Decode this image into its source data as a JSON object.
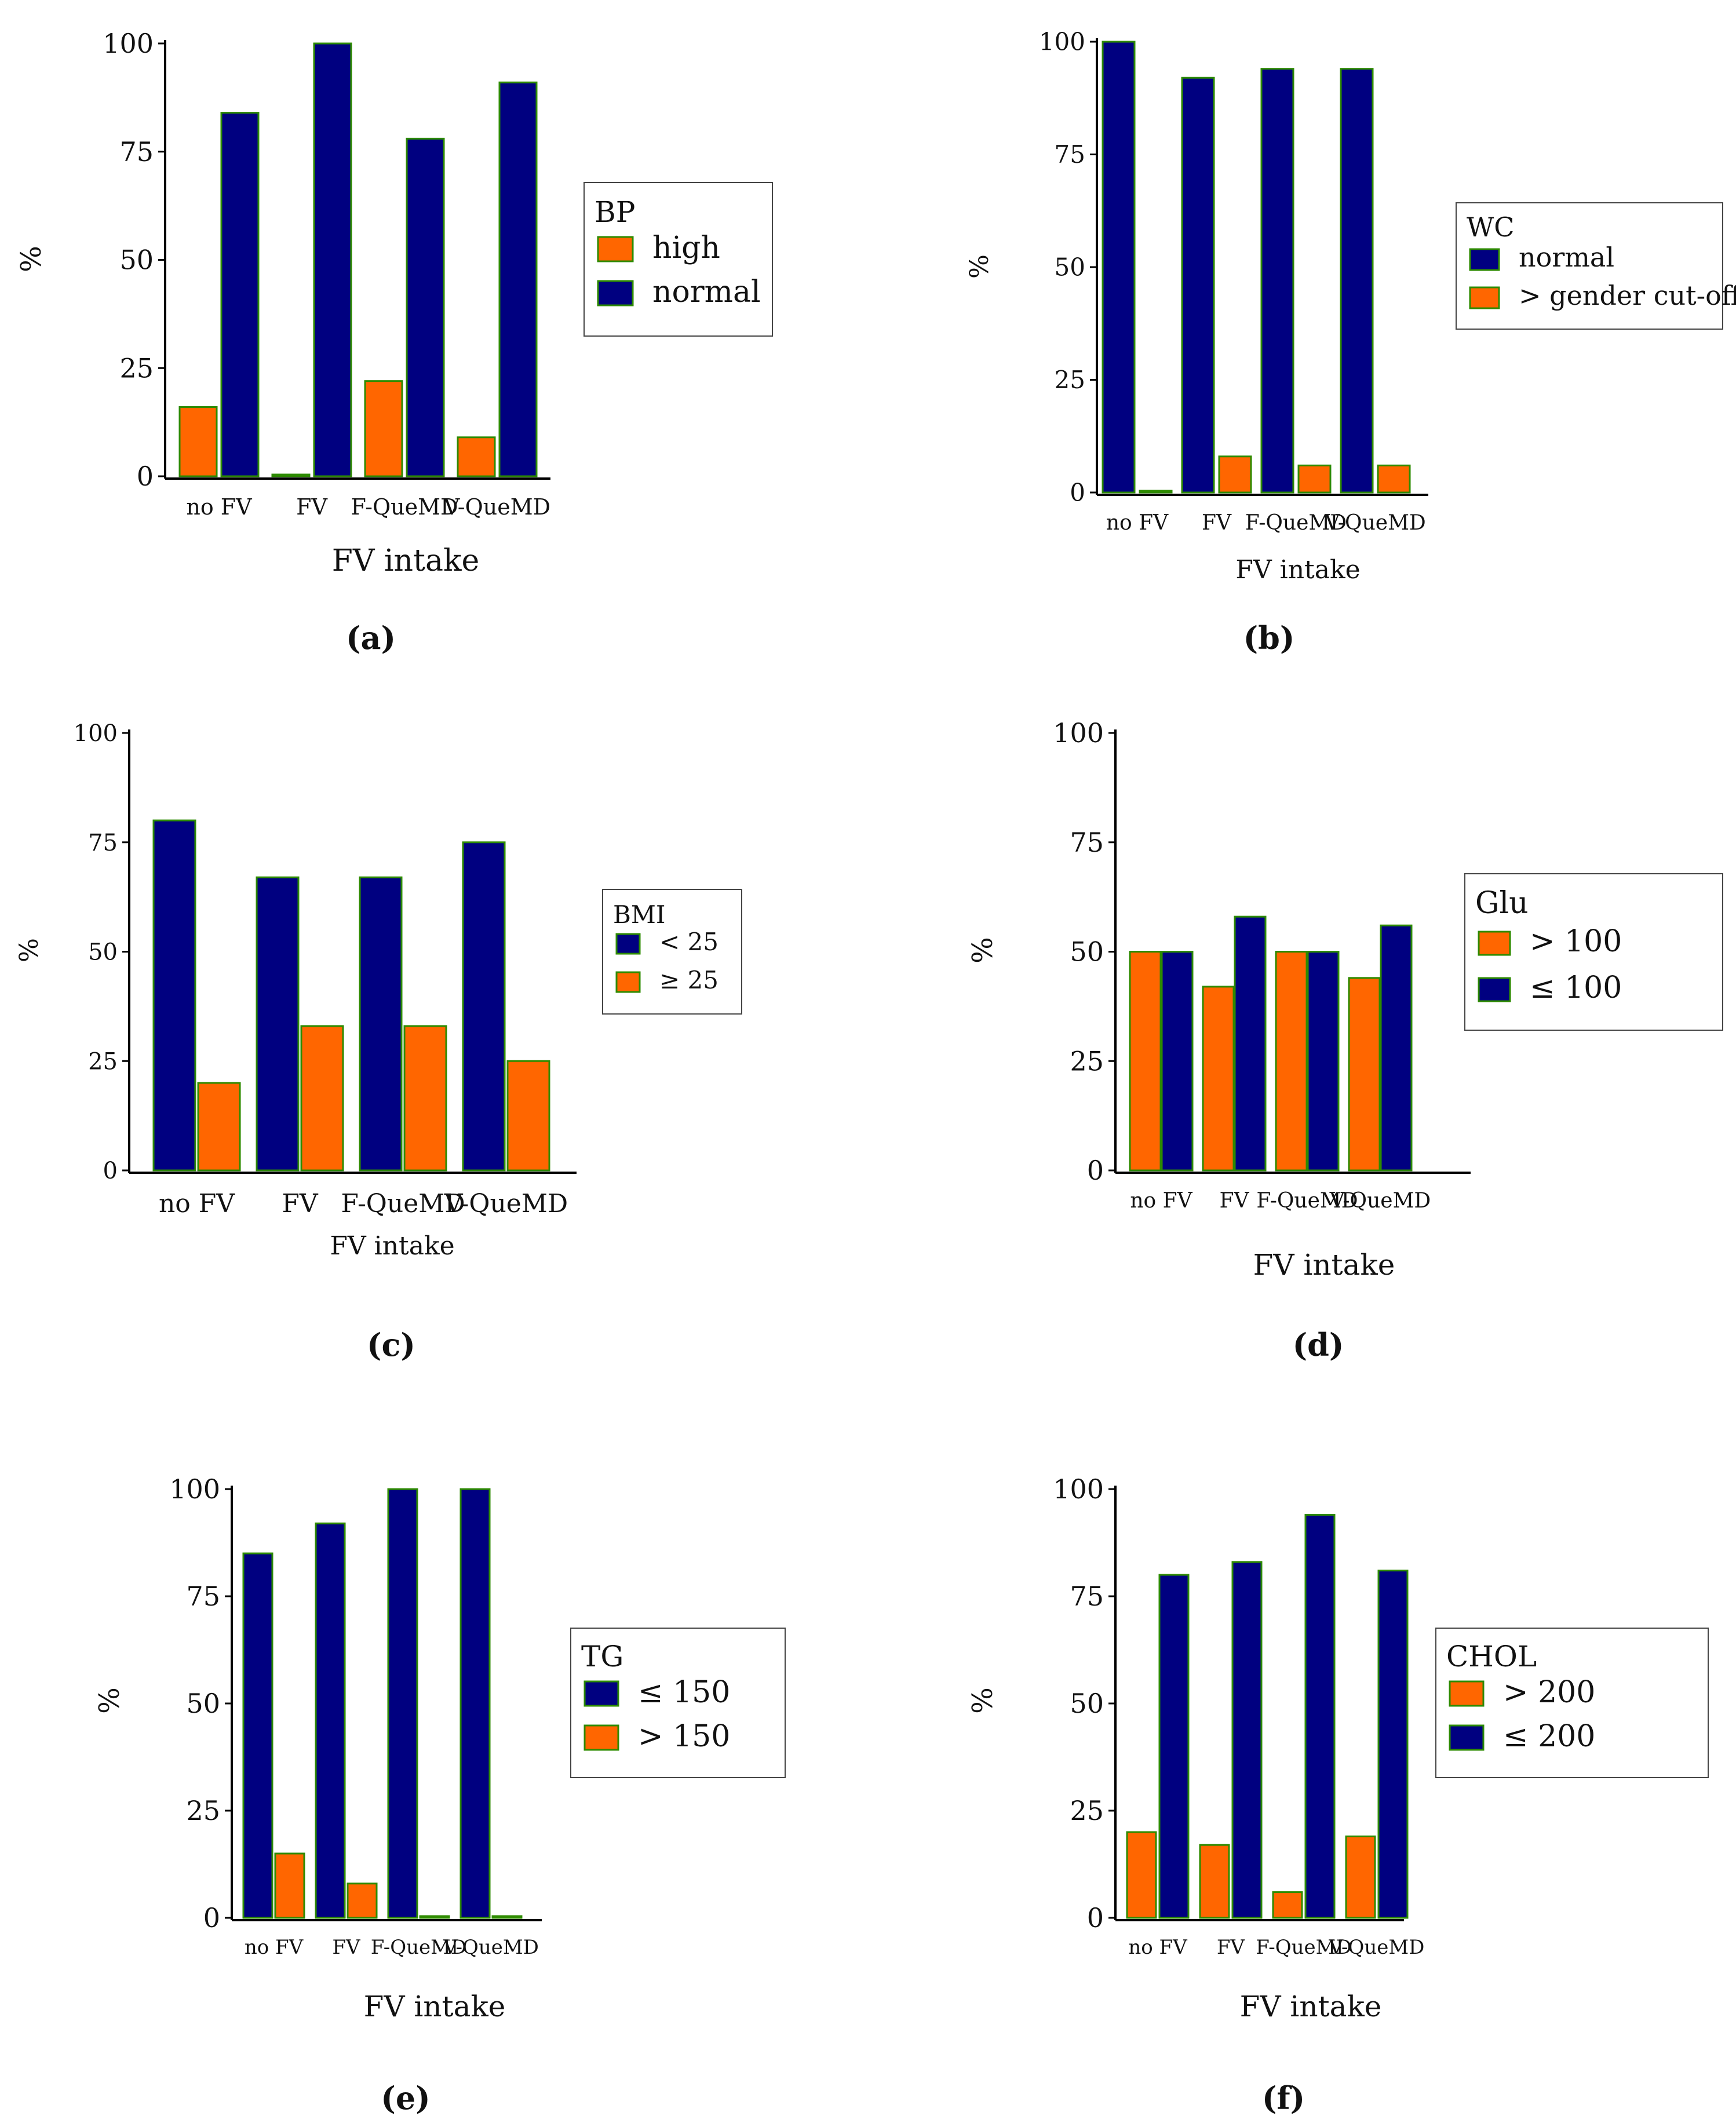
{
  "colors": {
    "orange": "#ff6600",
    "navy": "#000080",
    "bar_edge": "#2e8b00",
    "axis": "#000000"
  },
  "chart_data": [
    {
      "id": "a",
      "panel_label": "(a)",
      "type": "bar",
      "categories": [
        "no FV",
        "FV",
        "F-QueMD",
        "V-QueMD"
      ],
      "series": [
        {
          "name": "high",
          "color": "orange",
          "values": [
            16,
            0,
            22,
            9
          ]
        },
        {
          "name": "normal",
          "color": "navy",
          "values": [
            84,
            100,
            78,
            91
          ]
        }
      ],
      "legend_title": "BP",
      "legend_entries": [
        "high",
        "normal"
      ],
      "xlabel": "FV intake",
      "ylabel": "%",
      "yticks": [
        "0",
        "25",
        "50",
        "75",
        "100"
      ],
      "ylim": [
        0,
        100
      ]
    },
    {
      "id": "b",
      "panel_label": "(b)",
      "type": "bar",
      "categories": [
        "no FV",
        "FV",
        "F-QueMD",
        "V-QueMD"
      ],
      "series": [
        {
          "name": "normal",
          "color": "navy",
          "values": [
            100,
            92,
            94,
            94
          ]
        },
        {
          "name": "> gender cut-off",
          "color": "orange",
          "values": [
            0,
            8,
            6,
            6
          ]
        }
      ],
      "legend_title": "WC",
      "legend_entries": [
        "normal",
        "> gender cut-off"
      ],
      "xlabel": "FV intake",
      "ylabel": "%",
      "yticks": [
        "0",
        "25",
        "50",
        "75",
        "100"
      ],
      "ylim": [
        0,
        100
      ]
    },
    {
      "id": "c",
      "panel_label": "(c)",
      "type": "bar",
      "categories": [
        "no FV",
        "FV",
        "F-QueMD",
        "V-QueMD"
      ],
      "series": [
        {
          "name": "< 25",
          "color": "navy",
          "values": [
            80,
            67,
            67,
            75
          ]
        },
        {
          "name": "≥ 25",
          "color": "orange",
          "values": [
            20,
            33,
            33,
            25
          ]
        }
      ],
      "legend_title": "BMI",
      "legend_entries": [
        "< 25",
        "≥ 25"
      ],
      "xlabel": "FV intake",
      "ylabel": "%",
      "yticks": [
        "0",
        "25",
        "50",
        "75",
        "100"
      ],
      "ylim": [
        0,
        100
      ]
    },
    {
      "id": "d",
      "panel_label": "(d)",
      "type": "bar",
      "categories": [
        "no FV",
        "FV",
        "F-QueMD",
        "V-QueMD"
      ],
      "series": [
        {
          "name": "> 100",
          "color": "orange",
          "values": [
            50,
            42,
            50,
            44
          ]
        },
        {
          "name": "≤ 100",
          "color": "navy",
          "values": [
            50,
            58,
            50,
            56
          ]
        }
      ],
      "legend_title": "Glu",
      "legend_entries": [
        "> 100",
        "≤ 100"
      ],
      "xlabel": "FV intake",
      "ylabel": "%",
      "yticks": [
        "0",
        "25",
        "50",
        "75",
        "100"
      ],
      "ylim": [
        0,
        100
      ]
    },
    {
      "id": "e",
      "panel_label": "(e)",
      "type": "bar",
      "categories": [
        "no FV",
        "FV",
        "F-QueMD",
        "V-QueMD"
      ],
      "series": [
        {
          "name": "≤ 150",
          "color": "navy",
          "values": [
            85,
            92,
            100,
            100
          ]
        },
        {
          "name": "> 150",
          "color": "orange",
          "values": [
            15,
            8,
            0,
            0
          ]
        }
      ],
      "legend_title": "TG",
      "legend_entries": [
        "≤ 150",
        "> 150"
      ],
      "xlabel": "FV intake",
      "ylabel": "%",
      "yticks": [
        "0",
        "25",
        "50",
        "75",
        "100"
      ],
      "ylim": [
        0,
        100
      ]
    },
    {
      "id": "f",
      "panel_label": "(f)",
      "type": "bar",
      "categories": [
        "no FV",
        "FV",
        "F-QueMD",
        "V-QueMD"
      ],
      "series": [
        {
          "name": "> 200",
          "color": "orange",
          "values": [
            20,
            17,
            6,
            19
          ]
        },
        {
          "name": "≤ 200",
          "color": "navy",
          "values": [
            80,
            83,
            94,
            81
          ]
        }
      ],
      "legend_title": "CHOL",
      "legend_entries": [
        "> 200",
        "≤ 200"
      ],
      "xlabel": "FV intake",
      "ylabel": "%",
      "yticks": [
        "0",
        "25",
        "50",
        "75",
        "100"
      ],
      "ylim": [
        0,
        100
      ]
    }
  ]
}
